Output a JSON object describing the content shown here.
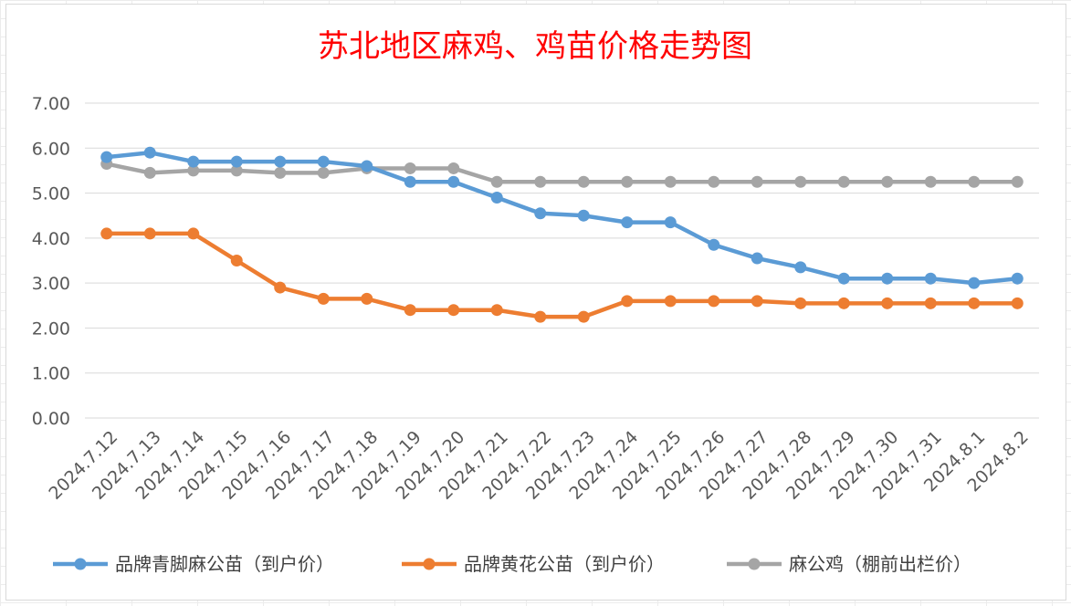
{
  "chart_data": {
    "type": "line",
    "title": "苏北地区麻鸡、鸡苗价格走势图",
    "xlabel": "",
    "ylabel": "",
    "ylim": [
      0,
      7
    ],
    "yticks": [
      "0.00",
      "1.00",
      "2.00",
      "3.00",
      "4.00",
      "5.00",
      "6.00",
      "7.00"
    ],
    "grid": true,
    "legend_position": "bottom",
    "categories": [
      "2024.7.12",
      "2024.7.13",
      "2024.7.14",
      "2024.7.15",
      "2024.7.16",
      "2024.7.17",
      "2024.7.18",
      "2024.7.19",
      "2024.7.20",
      "2024.7.21",
      "2024.7.22",
      "2024.7.23",
      "2024.7.24",
      "2024.7.25",
      "2024.7.26",
      "2024.7.27",
      "2024.7.28",
      "2024.7.29",
      "2024.7.30",
      "2024.7.31",
      "2024.8.1",
      "2024.8.2"
    ],
    "series": [
      {
        "name": "品牌青脚麻公苗（到户价）",
        "color": "#5b9bd5",
        "values": [
          5.8,
          5.9,
          5.7,
          5.7,
          5.7,
          5.7,
          5.6,
          5.25,
          5.25,
          4.9,
          4.55,
          4.5,
          4.35,
          4.35,
          3.85,
          3.55,
          3.35,
          3.1,
          3.1,
          3.1,
          3.0,
          3.1
        ]
      },
      {
        "name": "品牌黄花公苗（到户价）",
        "color": "#ed7d31",
        "values": [
          4.1,
          4.1,
          4.1,
          3.5,
          2.9,
          2.65,
          2.65,
          2.4,
          2.4,
          2.4,
          2.25,
          2.25,
          2.6,
          2.6,
          2.6,
          2.6,
          2.55,
          2.55,
          2.55,
          2.55,
          2.55,
          2.55
        ]
      },
      {
        "name": "麻公鸡（棚前出栏价）",
        "color": "#a5a5a5",
        "values": [
          5.65,
          5.45,
          5.5,
          5.5,
          5.45,
          5.45,
          5.55,
          5.55,
          5.55,
          5.25,
          5.25,
          5.25,
          5.25,
          5.25,
          5.25,
          5.25,
          5.25,
          5.25,
          5.25,
          5.25,
          5.25,
          5.25
        ]
      }
    ]
  }
}
